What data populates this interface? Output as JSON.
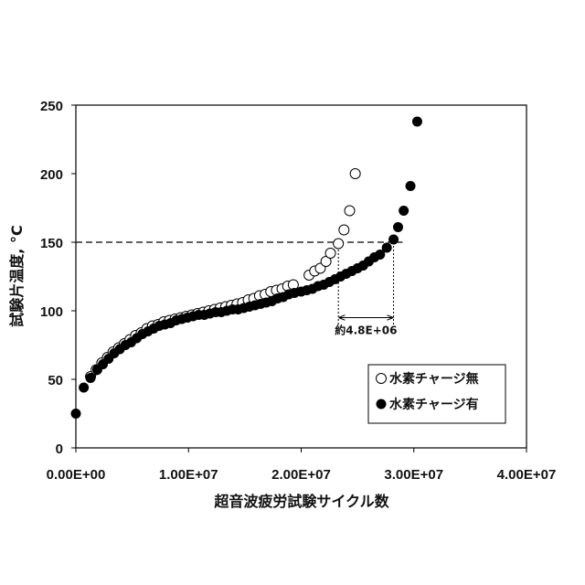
{
  "chart_data": {
    "type": "scatter",
    "title": "",
    "xlabel": "超音波疲労試験サイクル数",
    "ylabel": "試験片温度, °C",
    "xlim": [
      0,
      40000000
    ],
    "ylim": [
      0,
      250
    ],
    "x_ticks": [
      0,
      10000000,
      20000000,
      30000000,
      40000000
    ],
    "x_tick_labels": [
      "0.00E+00",
      "1.00E+07",
      "2.00E+07",
      "3.00E+07",
      "4.00E+07"
    ],
    "y_ticks": [
      0,
      50,
      100,
      150,
      200,
      250
    ],
    "y_tick_labels": [
      "0",
      "50",
      "100",
      "150",
      "200",
      "250"
    ],
    "grid": false,
    "legend_position": "bottom-right",
    "colors": {
      "marker": "#000000",
      "open_fill": "#ffffff",
      "frame": "#000000"
    },
    "series": [
      {
        "name": "水素チャージ無",
        "marker": "open-circle",
        "points": [
          [
            1300000,
            52
          ],
          [
            1800000,
            57
          ],
          [
            2300000,
            62
          ],
          [
            2800000,
            66
          ],
          [
            3300000,
            70
          ],
          [
            3800000,
            73
          ],
          [
            4300000,
            76
          ],
          [
            4800000,
            79
          ],
          [
            5300000,
            82
          ],
          [
            5800000,
            84
          ],
          [
            6300000,
            87
          ],
          [
            6800000,
            89
          ],
          [
            7300000,
            90
          ],
          [
            7800000,
            92
          ],
          [
            8300000,
            93
          ],
          [
            8800000,
            94
          ],
          [
            9300000,
            95
          ],
          [
            9800000,
            96
          ],
          [
            10300000,
            97
          ],
          [
            10800000,
            98
          ],
          [
            11300000,
            99
          ],
          [
            11800000,
            100
          ],
          [
            12300000,
            101
          ],
          [
            12800000,
            102
          ],
          [
            13300000,
            103
          ],
          [
            13800000,
            104
          ],
          [
            14300000,
            105
          ],
          [
            14800000,
            106
          ],
          [
            15300000,
            108
          ],
          [
            15800000,
            109
          ],
          [
            16300000,
            111
          ],
          [
            16800000,
            112
          ],
          [
            17300000,
            114
          ],
          [
            17800000,
            115
          ],
          [
            18300000,
            116
          ],
          [
            18800000,
            118
          ],
          [
            19300000,
            119
          ],
          [
            20700000,
            126
          ],
          [
            21200000,
            129
          ],
          [
            21700000,
            131
          ],
          [
            22200000,
            136
          ],
          [
            22600000,
            142
          ],
          [
            23300000,
            149
          ],
          [
            23800000,
            159
          ],
          [
            24300000,
            173
          ],
          [
            24800000,
            200
          ]
        ]
      },
      {
        "name": "水素チャージ有",
        "marker": "filled-circle",
        "points": [
          [
            0,
            25
          ],
          [
            700000,
            44
          ],
          [
            1300000,
            51
          ],
          [
            1900000,
            57
          ],
          [
            2400000,
            61
          ],
          [
            2900000,
            65
          ],
          [
            3400000,
            69
          ],
          [
            3900000,
            72
          ],
          [
            4400000,
            75
          ],
          [
            4900000,
            77
          ],
          [
            5400000,
            80
          ],
          [
            5900000,
            83
          ],
          [
            6400000,
            85
          ],
          [
            6900000,
            87
          ],
          [
            7400000,
            89
          ],
          [
            7900000,
            90
          ],
          [
            8400000,
            91
          ],
          [
            8900000,
            93
          ],
          [
            9400000,
            94
          ],
          [
            9900000,
            95
          ],
          [
            10400000,
            96
          ],
          [
            10900000,
            97
          ],
          [
            11400000,
            97
          ],
          [
            11900000,
            98
          ],
          [
            12400000,
            99
          ],
          [
            12900000,
            99
          ],
          [
            13400000,
            100
          ],
          [
            13900000,
            101
          ],
          [
            14400000,
            101
          ],
          [
            14900000,
            102
          ],
          [
            15400000,
            103
          ],
          [
            15900000,
            104
          ],
          [
            16400000,
            105
          ],
          [
            16900000,
            106
          ],
          [
            17400000,
            107
          ],
          [
            17900000,
            109
          ],
          [
            18400000,
            110
          ],
          [
            18900000,
            112
          ],
          [
            19400000,
            113
          ],
          [
            20000000,
            114
          ],
          [
            20500000,
            115
          ],
          [
            21000000,
            116
          ],
          [
            21500000,
            118
          ],
          [
            22000000,
            119
          ],
          [
            22500000,
            121
          ],
          [
            23000000,
            123
          ],
          [
            23500000,
            125
          ],
          [
            24000000,
            127
          ],
          [
            24500000,
            129
          ],
          [
            25000000,
            131
          ],
          [
            25500000,
            133
          ],
          [
            26000000,
            136
          ],
          [
            26500000,
            139
          ],
          [
            27000000,
            141
          ],
          [
            27600000,
            146
          ],
          [
            28200000,
            152
          ],
          [
            28600000,
            161
          ],
          [
            29100000,
            173
          ],
          [
            29700000,
            191
          ],
          [
            30300000,
            238
          ]
        ]
      }
    ],
    "annotations": {
      "reference_line": {
        "y": 150,
        "x_from": 0,
        "x_to": 29000000,
        "style": "dashed"
      },
      "interval": {
        "x_start": 23300000,
        "x_end": 28200000,
        "y_top": 150,
        "y_bottom": 90,
        "arrow_y": 95,
        "label": "約4.8E+06",
        "label_y": 83
      }
    }
  }
}
